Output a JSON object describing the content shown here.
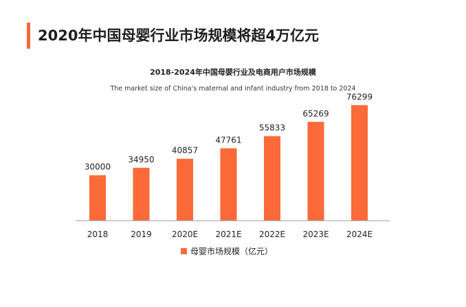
{
  "page": {
    "heading": "2020年中国母婴行业市场规模将超4万亿元"
  },
  "colors": {
    "accent": "#f26b3a",
    "bar": "#fb6a38",
    "axis": "#9a9a9a"
  },
  "chart_data": {
    "type": "bar",
    "title": "2018-2024年中国母婴行业及电商用户市场规模",
    "subtitle": "The market size of China's maternal and infant industry from 2018 to 2024",
    "categories": [
      "2018",
      "2019",
      "2020E",
      "2021E",
      "2022E",
      "2023E",
      "2024E"
    ],
    "series": [
      {
        "name": "母婴市场规模（亿元）",
        "values": [
          30000,
          34950,
          40857,
          47761,
          55833,
          65269,
          76299
        ]
      }
    ],
    "ylim": [
      0,
      100000
    ],
    "grid": false,
    "legend_position": "bottom-center",
    "data_labels": true
  }
}
